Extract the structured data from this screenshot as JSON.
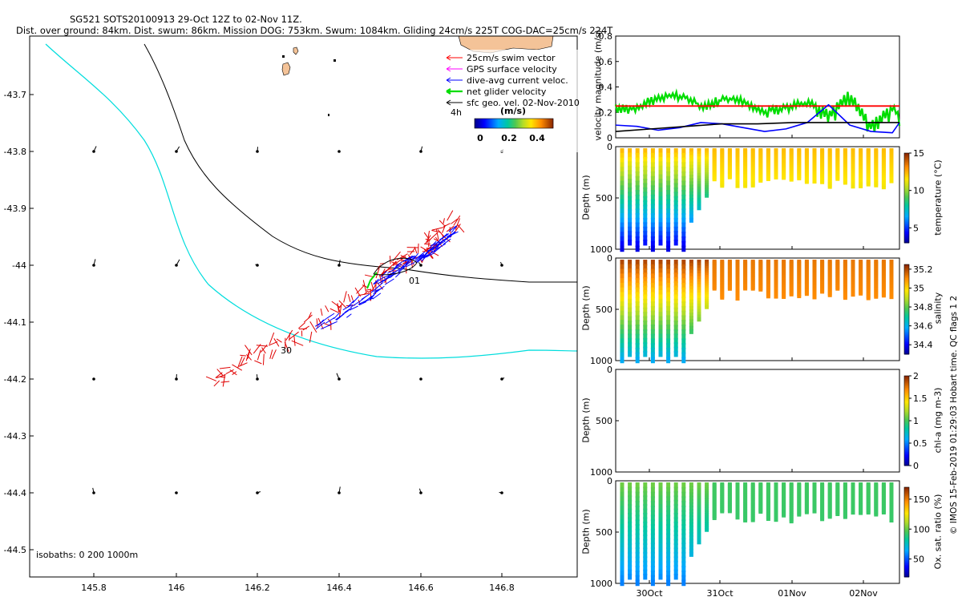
{
  "header": {
    "line1": "SG521 SOTS20100913 29-Oct 12Z to 02-Nov 11Z.",
    "line2": "Dist. over ground: 84km. Dist. swum: 86km. Mission DOG: 753km. Swum: 1084km. Gliding 24cm/s 225T COG-DAC=25cm/s 224T"
  },
  "map": {
    "x_ticks": [
      "145.8",
      "146",
      "146.2",
      "146.4",
      "146.6",
      "146.8"
    ],
    "y_ticks": [
      "-43.7",
      "-43.8",
      "-43.9",
      "-44",
      "-44.1",
      "-44.2",
      "-44.3",
      "-44.4",
      "-44.5"
    ],
    "isobaths_label": "isobaths: 0   200   1000m",
    "day_labels": [
      "30",
      "01"
    ],
    "legend": [
      {
        "label": "25cm/s swim vector",
        "color": "#ff0000"
      },
      {
        "label": "GPS surface velocity",
        "color": "#ff00ff"
      },
      {
        "label": "dive-avg current veloc.",
        "color": "#0000ff"
      },
      {
        "label": "net glider velocity",
        "color": "#00dd00"
      },
      {
        "label": "sfc geo. vel. 02-Nov-2010",
        "color": "#000000"
      }
    ],
    "legend_4h": "4h",
    "colorbar_unit": "(m/s)",
    "colorbar_ticks": [
      "0",
      "0.2",
      "0.4"
    ]
  },
  "chart_data": [
    {
      "type": "line",
      "title": "",
      "ylabel": "velocity magnitude (m/s)",
      "ylim": [
        0,
        0.8
      ],
      "yticks": [
        "0",
        "0.2",
        "0.4",
        "0.6",
        "0.8"
      ],
      "series": [
        {
          "name": "net glider velocity",
          "color": "#00dd00",
          "x": [
            0,
            0.3,
            0.6,
            0.9,
            1.2,
            1.5,
            1.8,
            2.1,
            2.4,
            2.7,
            3.0,
            3.3,
            3.6,
            3.9,
            4.0
          ],
          "y": [
            0.24,
            0.24,
            0.33,
            0.33,
            0.26,
            0.3,
            0.3,
            0.2,
            0.25,
            0.28,
            0.2,
            0.35,
            0.1,
            0.25,
            0.15
          ]
        },
        {
          "name": "red reference",
          "color": "#ff0000",
          "x": [
            0,
            4.0
          ],
          "y": [
            0.25,
            0.25
          ]
        },
        {
          "name": "dive-avg current",
          "color": "#0000ff",
          "x": [
            0,
            0.3,
            0.6,
            0.9,
            1.2,
            1.5,
            1.8,
            2.1,
            2.4,
            2.7,
            3.0,
            3.3,
            3.6,
            3.9,
            4.0
          ],
          "y": [
            0.1,
            0.09,
            0.06,
            0.08,
            0.12,
            0.11,
            0.08,
            0.05,
            0.07,
            0.12,
            0.26,
            0.1,
            0.05,
            0.04,
            0.12
          ]
        },
        {
          "name": "sfc geo vel",
          "color": "#000000",
          "x": [
            0,
            0.5,
            1.0,
            1.5,
            2.0,
            2.5,
            3.0,
            3.5,
            4.0
          ],
          "y": [
            0.05,
            0.07,
            0.09,
            0.11,
            0.11,
            0.12,
            0.12,
            0.12,
            0.12
          ]
        }
      ]
    },
    {
      "type": "heatmap",
      "ylabel": "Depth (m)",
      "ylim": [
        1000,
        0
      ],
      "yticks": [
        "0",
        "500",
        "1000"
      ],
      "colorbar_label": "temperature (°C)",
      "colorbar_ticks": [
        "5",
        "10",
        "15"
      ],
      "crange": [
        3,
        15
      ]
    },
    {
      "type": "heatmap",
      "ylabel": "Depth (m)",
      "ylim": [
        1000,
        0
      ],
      "yticks": [
        "0",
        "500",
        "1000"
      ],
      "colorbar_label": "salinity",
      "colorbar_ticks": [
        "34.4",
        "34.6",
        "34.8",
        "35",
        "35.2"
      ],
      "crange": [
        34.3,
        35.25
      ]
    },
    {
      "type": "heatmap",
      "ylabel": "Depth (m)",
      "ylim": [
        1000,
        0
      ],
      "yticks": [
        "0",
        "500",
        "1000"
      ],
      "colorbar_label": "chl-a (mg m-3)",
      "colorbar_ticks": [
        "0",
        "0.5",
        "1",
        "1.5",
        "2"
      ],
      "crange": [
        0,
        2
      ]
    },
    {
      "type": "heatmap",
      "ylabel": "Depth (m)",
      "ylim": [
        1000,
        0
      ],
      "yticks": [
        "0",
        "500",
        "1000"
      ],
      "colorbar_label": "Ox. sat. ratio (%)",
      "colorbar_ticks": [
        "50",
        "100",
        "150"
      ],
      "crange": [
        20,
        170
      ]
    }
  ],
  "time_axis": {
    "ticks": [
      "30Oct",
      "31Oct",
      "01Nov",
      "02Nov"
    ]
  },
  "credit": "© IMOS 15-Feb-2019 01:29:03 Hobart time. QC flags 1  2"
}
